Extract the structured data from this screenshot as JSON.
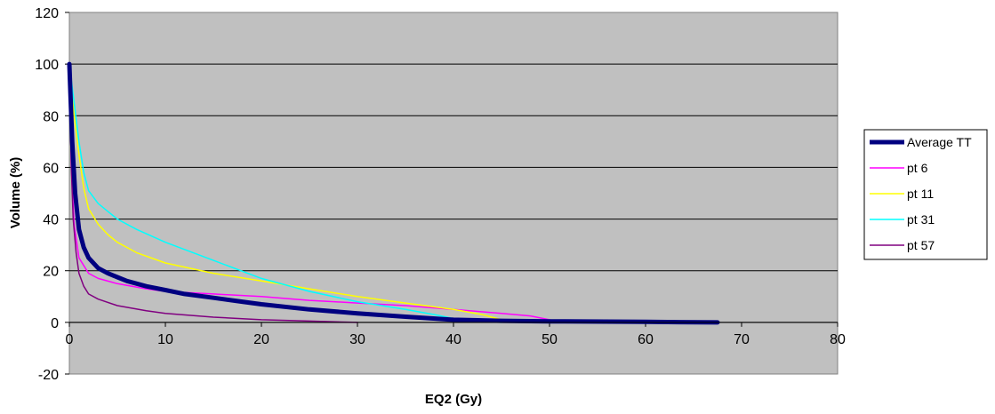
{
  "chart_data": {
    "type": "line",
    "title": "",
    "xlabel": "EQ2 (Gy)",
    "ylabel": "Volume (%)",
    "xlim": [
      0,
      80
    ],
    "ylim": [
      -20,
      120
    ],
    "xticks": [
      "0",
      "10",
      "20",
      "30",
      "40",
      "50",
      "60",
      "70",
      "80"
    ],
    "yticks": [
      "-20",
      "0",
      "20",
      "40",
      "60",
      "80",
      "100",
      "120"
    ],
    "grid": "horizontal",
    "plot_background": "#c0c0c0",
    "legend_position": "right",
    "series": [
      {
        "name": "Average TT",
        "color": "#000080",
        "width": "thick",
        "points": [
          [
            0,
            100
          ],
          [
            0.3,
            70
          ],
          [
            0.6,
            50
          ],
          [
            1,
            36
          ],
          [
            1.5,
            29
          ],
          [
            2,
            25
          ],
          [
            3,
            21
          ],
          [
            4,
            19
          ],
          [
            5,
            17.5
          ],
          [
            6,
            16
          ],
          [
            8,
            14
          ],
          [
            10,
            12.5
          ],
          [
            12,
            11
          ],
          [
            15,
            9.5
          ],
          [
            18,
            8
          ],
          [
            20,
            7
          ],
          [
            25,
            5
          ],
          [
            30,
            3.5
          ],
          [
            35,
            2.2
          ],
          [
            40,
            1
          ],
          [
            45,
            0.6
          ],
          [
            50,
            0.4
          ],
          [
            60,
            0.2
          ],
          [
            67.5,
            0
          ]
        ]
      },
      {
        "name": "pt 6",
        "color": "#ff00ff",
        "width": "thin",
        "points": [
          [
            0,
            100
          ],
          [
            0.2,
            60
          ],
          [
            0.5,
            38
          ],
          [
            1,
            25
          ],
          [
            2,
            19
          ],
          [
            3,
            17
          ],
          [
            5,
            15
          ],
          [
            8,
            13
          ],
          [
            10,
            12
          ],
          [
            15,
            11
          ],
          [
            20,
            10
          ],
          [
            25,
            8.5
          ],
          [
            30,
            7.5
          ],
          [
            35,
            6.5
          ],
          [
            40,
            5
          ],
          [
            45,
            3.5
          ],
          [
            48,
            2.5
          ],
          [
            50,
            1
          ],
          [
            51,
            0
          ]
        ]
      },
      {
        "name": "pt 11",
        "color": "#ffff00",
        "width": "thin",
        "points": [
          [
            0,
            100
          ],
          [
            0.5,
            80
          ],
          [
            1,
            65
          ],
          [
            1.5,
            52
          ],
          [
            2,
            44
          ],
          [
            3,
            38
          ],
          [
            4,
            34
          ],
          [
            5,
            31
          ],
          [
            7,
            27
          ],
          [
            10,
            23
          ],
          [
            15,
            19
          ],
          [
            20,
            16
          ],
          [
            25,
            13
          ],
          [
            30,
            10
          ],
          [
            35,
            7.5
          ],
          [
            40,
            5
          ],
          [
            43,
            3
          ],
          [
            45,
            1
          ],
          [
            46,
            0
          ]
        ]
      },
      {
        "name": "pt 31",
        "color": "#00ffff",
        "width": "thin",
        "points": [
          [
            0,
            100
          ],
          [
            0.5,
            85
          ],
          [
            1,
            70
          ],
          [
            1.5,
            58
          ],
          [
            2,
            51
          ],
          [
            3,
            46
          ],
          [
            4,
            43
          ],
          [
            5,
            40
          ],
          [
            7,
            36
          ],
          [
            10,
            31
          ],
          [
            15,
            24
          ],
          [
            20,
            17
          ],
          [
            25,
            12
          ],
          [
            30,
            8
          ],
          [
            35,
            5
          ],
          [
            38,
            3
          ],
          [
            40,
            1.5
          ],
          [
            42,
            0.5
          ],
          [
            45,
            0
          ]
        ]
      },
      {
        "name": "pt 57",
        "color": "#800080",
        "width": "thin",
        "points": [
          [
            0,
            100
          ],
          [
            0.2,
            60
          ],
          [
            0.4,
            40
          ],
          [
            0.7,
            27
          ],
          [
            1,
            19
          ],
          [
            1.5,
            14
          ],
          [
            2,
            11
          ],
          [
            3,
            9
          ],
          [
            5,
            6.5
          ],
          [
            8,
            4.5
          ],
          [
            10,
            3.5
          ],
          [
            15,
            2
          ],
          [
            20,
            1
          ],
          [
            25,
            0.5
          ],
          [
            30,
            0
          ]
        ]
      }
    ]
  }
}
